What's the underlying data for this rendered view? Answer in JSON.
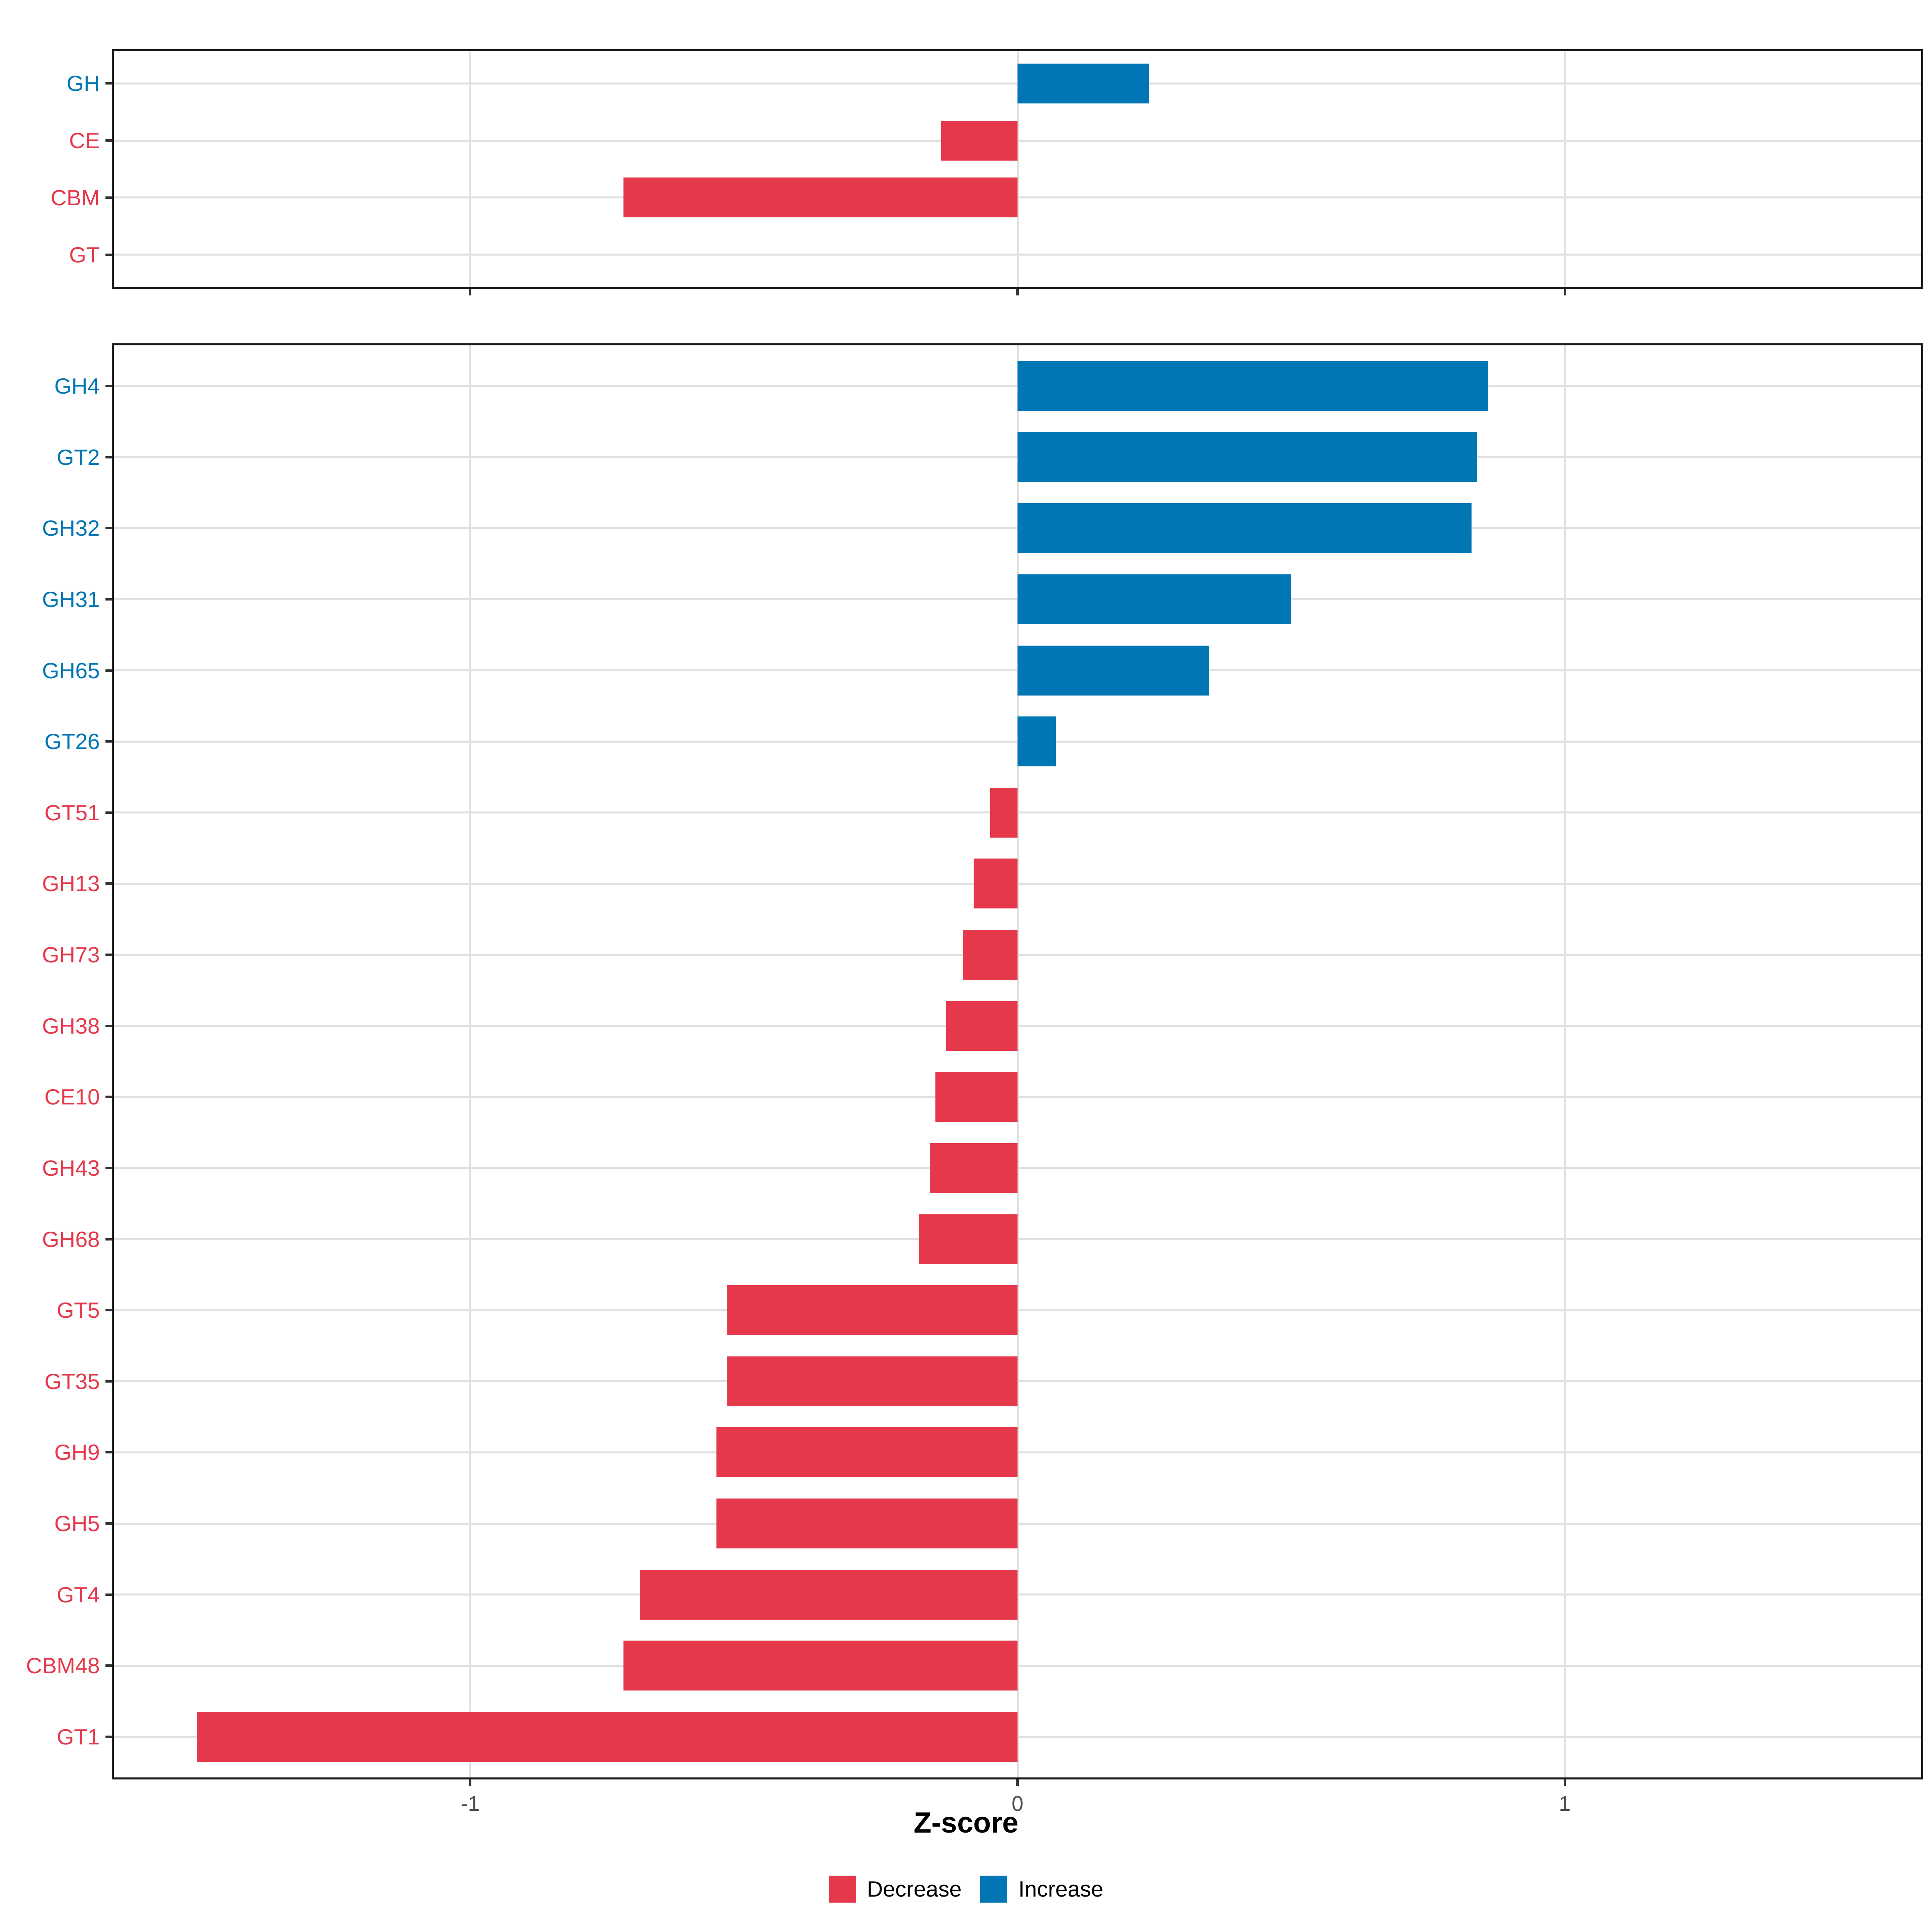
{
  "figure": {
    "axis_title": "Z-score",
    "x_tick_labels": [
      "-1",
      "0",
      "1"
    ],
    "x_tick_values": [
      -1,
      0,
      1
    ],
    "x_range": [
      -1.655,
      1.655
    ]
  },
  "colors": {
    "decrease": "#E5384A",
    "increase": "#0076B5",
    "grid": "#E0E0E0",
    "panel_border": "#1A1A1A",
    "tick": "#333333",
    "tick_label": "#4D4D4D",
    "background": "#FFFFFF"
  },
  "legend": {
    "items": [
      {
        "label": "Decrease",
        "color": "#E5384A"
      },
      {
        "label": "Increase",
        "color": "#0076B5"
      }
    ]
  },
  "chart_data": [
    {
      "id": "cazyme-classes",
      "type": "bar",
      "orientation": "horizontal",
      "panel": "top",
      "title": "",
      "xlabel": "Z-score",
      "xlim": [
        -1.655,
        1.655
      ],
      "grid": true,
      "categories": [
        "GH",
        "CE",
        "CBM",
        "GT"
      ],
      "values": [
        0.24,
        -0.14,
        -0.72,
        0.0
      ],
      "groups": [
        "Increase",
        "Decrease",
        "Decrease",
        "Decrease"
      ]
    },
    {
      "id": "cazyme-families",
      "type": "bar",
      "orientation": "horizontal",
      "panel": "bottom",
      "title": "",
      "xlabel": "Z-score",
      "xlim": [
        -1.655,
        1.655
      ],
      "grid": true,
      "categories": [
        "GH4",
        "GT2",
        "GH32",
        "GH31",
        "GH65",
        "GT26",
        "GT51",
        "GH13",
        "GH73",
        "GH38",
        "CE10",
        "GH43",
        "GH68",
        "GT5",
        "GT35",
        "GH9",
        "GH5",
        "GT4",
        "CBM48",
        "GT1"
      ],
      "values": [
        0.86,
        0.84,
        0.83,
        0.5,
        0.35,
        0.07,
        -0.05,
        -0.08,
        -0.1,
        -0.13,
        -0.15,
        -0.16,
        -0.18,
        -0.53,
        -0.53,
        -0.55,
        -0.55,
        -0.69,
        -0.72,
        -1.5
      ],
      "groups": [
        "Increase",
        "Increase",
        "Increase",
        "Increase",
        "Increase",
        "Increase",
        "Decrease",
        "Decrease",
        "Decrease",
        "Decrease",
        "Decrease",
        "Decrease",
        "Decrease",
        "Decrease",
        "Decrease",
        "Decrease",
        "Decrease",
        "Decrease",
        "Decrease",
        "Decrease"
      ]
    }
  ]
}
